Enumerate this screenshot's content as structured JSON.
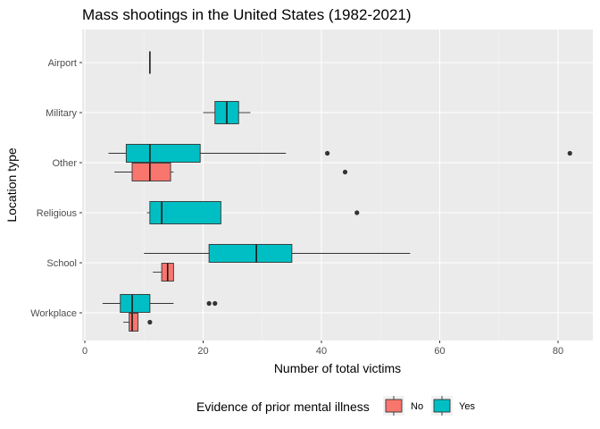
{
  "chart_data": {
    "type": "boxplot",
    "orientation": "horizontal",
    "title": "Mass shootings in the United States (1982-2021)",
    "xlabel": "Number of total victims",
    "ylabel": "Location type",
    "xlim": [
      0,
      85
    ],
    "x_ticks": [
      0,
      20,
      40,
      60,
      80
    ],
    "categories": [
      "Airport",
      "Military",
      "Other",
      "Religious",
      "School",
      "Workplace"
    ],
    "legend": {
      "title": "Evidence of prior mental illness",
      "position": "bottom",
      "entries": [
        {
          "label": "No",
          "color": "#F8766D"
        },
        {
          "label": "Yes",
          "color": "#00BFC4"
        }
      ]
    },
    "grid": true,
    "boxes": [
      {
        "category": "Airport",
        "group": "Yes",
        "min": 11,
        "q1": 11,
        "median": 11,
        "q3": 11,
        "max": 11,
        "outliers": []
      },
      {
        "category": "Military",
        "group": "Yes",
        "min": 20,
        "q1": 22,
        "median": 24,
        "q3": 26,
        "max": 28,
        "outliers": []
      },
      {
        "category": "Other",
        "group": "No",
        "min": 5,
        "q1": 8,
        "median": 11,
        "q3": 14.5,
        "max": 15,
        "outliers": [
          44
        ]
      },
      {
        "category": "Other",
        "group": "Yes",
        "min": 4,
        "q1": 7,
        "median": 11,
        "q3": 19.5,
        "max": 34,
        "outliers": [
          41,
          82
        ]
      },
      {
        "category": "Religious",
        "group": "Yes",
        "min": 10.5,
        "q1": 11,
        "median": 13,
        "q3": 23,
        "max": 23,
        "outliers": [
          46
        ]
      },
      {
        "category": "School",
        "group": "No",
        "min": 11.5,
        "q1": 13,
        "median": 14,
        "q3": 15,
        "max": 15,
        "outliers": []
      },
      {
        "category": "School",
        "group": "Yes",
        "min": 10,
        "q1": 21,
        "median": 29,
        "q3": 35,
        "max": 55,
        "outliers": []
      },
      {
        "category": "Workplace",
        "group": "No",
        "min": 6.5,
        "q1": 7.5,
        "median": 8,
        "q3": 9,
        "max": 9,
        "outliers": [
          11
        ]
      },
      {
        "category": "Workplace",
        "group": "Yes",
        "min": 3,
        "q1": 6,
        "median": 8,
        "q3": 11,
        "max": 15,
        "outliers": [
          21,
          22
        ]
      }
    ]
  }
}
